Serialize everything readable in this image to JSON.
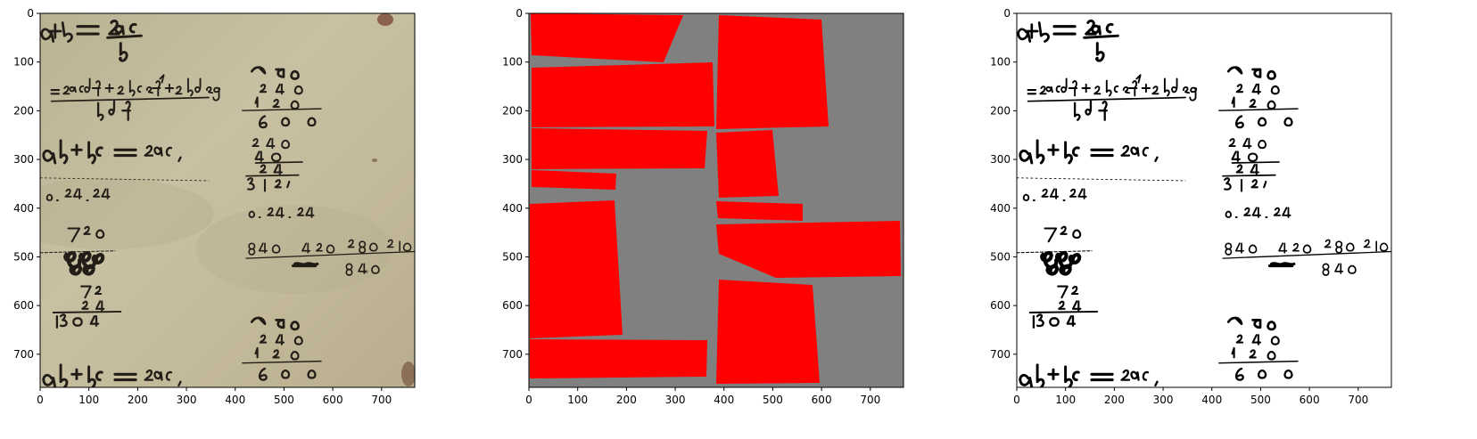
{
  "figure": {
    "panels": [
      {
        "id": "original",
        "content": "photo of handwritten arithmetic on aged paper",
        "x_ticks": [
          "0",
          "100",
          "200",
          "300",
          "400",
          "500",
          "600",
          "700"
        ],
        "y_ticks": [
          "0",
          "100",
          "200",
          "300",
          "400",
          "500",
          "600",
          "700"
        ],
        "background_color": "#c4bb9c"
      },
      {
        "id": "segmentation-mask",
        "content": "red quadrilateral regions on grey background",
        "x_ticks": [
          "0",
          "100",
          "200",
          "300",
          "400",
          "500",
          "600",
          "700"
        ],
        "y_ticks": [
          "0",
          "100",
          "200",
          "300",
          "400",
          "500",
          "600",
          "700"
        ],
        "background_color": "#808080",
        "region_color": "#ff0000"
      },
      {
        "id": "binarized",
        "content": "black handwriting on white background",
        "x_ticks": [
          "0",
          "100",
          "200",
          "300",
          "400",
          "500",
          "600",
          "700"
        ],
        "y_ticks": [
          "0",
          "100",
          "200",
          "300",
          "400",
          "500",
          "600",
          "700"
        ],
        "background_color": "#ffffff"
      }
    ],
    "axis_range": {
      "x": [
        0,
        768
      ],
      "y": [
        768,
        0
      ]
    }
  }
}
